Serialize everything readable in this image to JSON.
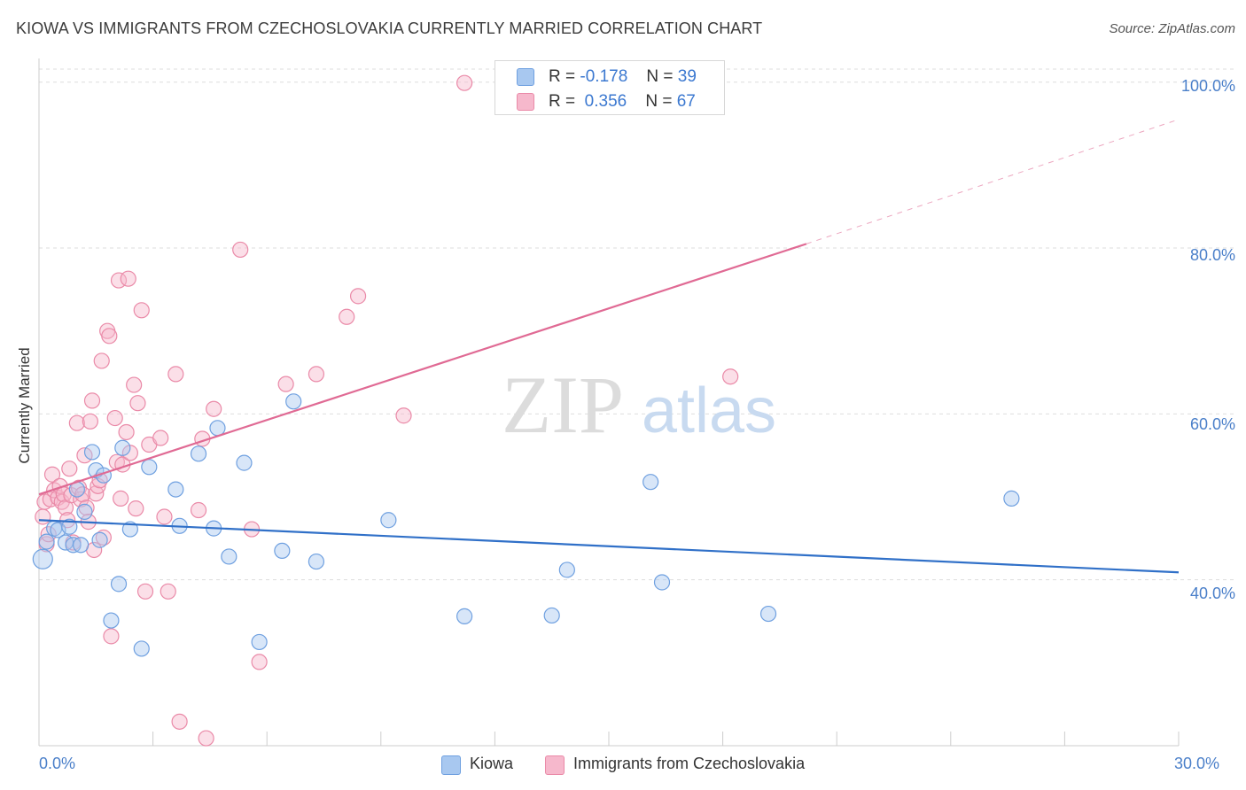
{
  "title": "KIOWA VS IMMIGRANTS FROM CZECHOSLOVAKIA CURRENTLY MARRIED CORRELATION CHART",
  "source": "Source: ZipAtlas.com",
  "watermark": {
    "zip": "ZIP",
    "atlas": "atlas"
  },
  "legend_box": {
    "rows": [
      {
        "r_label": "R =",
        "r_value": "-0.178",
        "n_label": "N =",
        "n_value": "39"
      },
      {
        "r_label": "R =",
        "r_value": "0.356",
        "n_label": "N =",
        "n_value": "67"
      }
    ]
  },
  "bottom_legend": {
    "kiowa": "Kiowa",
    "czech": "Immigrants from Czechoslovakia"
  },
  "colors": {
    "kiowa_fill": "#a8c8f0",
    "kiowa_stroke": "#6fa0e0",
    "kiowa_line": "#3070c8",
    "czech_fill": "#f6b8cc",
    "czech_stroke": "#ea8aa8",
    "czech_line": "#e06a94",
    "tick_text": "#4a7fc9",
    "grid": "#dddddd"
  },
  "chart_data": {
    "type": "scatter",
    "title": "KIOWA VS IMMIGRANTS FROM CZECHOSLOVAKIA CURRENTLY MARRIED CORRELATION CHART",
    "xlabel": "",
    "ylabel": "Currently Married",
    "xlim": [
      0,
      30
    ],
    "ylim": [
      20,
      102
    ],
    "x_tick_labels": [
      "0.0%",
      "30.0%"
    ],
    "y_ticks": [
      40,
      60,
      80,
      100
    ],
    "y_tick_labels": [
      "40.0%",
      "60.0%",
      "80.0%",
      "100.0%"
    ],
    "grid": true,
    "legend_placement": "top-center",
    "series": [
      {
        "name": "Kiowa",
        "r": -0.178,
        "n": 39,
        "trend": {
          "x": [
            0,
            30
          ],
          "y": [
            47.2,
            40.9
          ]
        },
        "points": [
          [
            0.1,
            42.5
          ],
          [
            0.2,
            44.6
          ],
          [
            0.4,
            46.2
          ],
          [
            0.5,
            46.0
          ],
          [
            0.7,
            44.5
          ],
          [
            0.8,
            46.4
          ],
          [
            0.9,
            44.2
          ],
          [
            1.0,
            50.9
          ],
          [
            1.1,
            44.2
          ],
          [
            1.2,
            48.2
          ],
          [
            1.4,
            55.4
          ],
          [
            1.5,
            53.2
          ],
          [
            1.6,
            44.8
          ],
          [
            1.7,
            52.6
          ],
          [
            1.9,
            35.1
          ],
          [
            2.1,
            39.5
          ],
          [
            2.2,
            55.9
          ],
          [
            2.4,
            46.1
          ],
          [
            2.7,
            31.7
          ],
          [
            2.9,
            53.6
          ],
          [
            3.6,
            50.9
          ],
          [
            3.7,
            46.5
          ],
          [
            4.2,
            55.2
          ],
          [
            4.6,
            46.2
          ],
          [
            4.7,
            58.3
          ],
          [
            5.0,
            42.8
          ],
          [
            5.4,
            54.1
          ],
          [
            5.8,
            32.5
          ],
          [
            6.4,
            43.5
          ],
          [
            6.7,
            61.5
          ],
          [
            7.3,
            42.2
          ],
          [
            9.2,
            47.2
          ],
          [
            11.2,
            35.6
          ],
          [
            13.5,
            35.7
          ],
          [
            13.9,
            41.2
          ],
          [
            16.1,
            51.8
          ],
          [
            16.4,
            39.7
          ],
          [
            19.2,
            35.9
          ],
          [
            25.6,
            49.8
          ]
        ]
      },
      {
        "name": "Immigrants from Czechoslovakia",
        "r": 0.356,
        "n": 67,
        "trend": {
          "x": [
            0,
            20.2
          ],
          "y": [
            50.3,
            80.5
          ]
        },
        "trend_ext": {
          "x": [
            20.2,
            30
          ],
          "y": [
            80.5,
            95.5
          ]
        },
        "points": [
          [
            0.1,
            47.6
          ],
          [
            0.15,
            49.4
          ],
          [
            0.2,
            44.3
          ],
          [
            0.3,
            49.7
          ],
          [
            0.35,
            52.7
          ],
          [
            0.4,
            50.8
          ],
          [
            0.5,
            49.9
          ],
          [
            0.55,
            51.3
          ],
          [
            0.6,
            49.4
          ],
          [
            0.65,
            50.3
          ],
          [
            0.7,
            48.7
          ],
          [
            0.75,
            47.2
          ],
          [
            0.8,
            53.4
          ],
          [
            0.85,
            50.2
          ],
          [
            0.9,
            44.5
          ],
          [
            1.0,
            58.9
          ],
          [
            1.05,
            51.1
          ],
          [
            1.1,
            49.7
          ],
          [
            1.15,
            50.3
          ],
          [
            1.2,
            55.0
          ],
          [
            1.25,
            48.7
          ],
          [
            1.3,
            47.0
          ],
          [
            1.35,
            59.1
          ],
          [
            1.4,
            61.6
          ],
          [
            1.45,
            43.6
          ],
          [
            1.5,
            50.4
          ],
          [
            1.55,
            51.3
          ],
          [
            1.6,
            52.0
          ],
          [
            1.65,
            66.4
          ],
          [
            1.7,
            45.1
          ],
          [
            1.8,
            70.0
          ],
          [
            1.85,
            69.4
          ],
          [
            1.9,
            33.2
          ],
          [
            2.0,
            59.5
          ],
          [
            2.05,
            54.2
          ],
          [
            2.1,
            76.1
          ],
          [
            2.15,
            49.8
          ],
          [
            2.2,
            53.9
          ],
          [
            2.3,
            57.8
          ],
          [
            2.35,
            76.3
          ],
          [
            2.4,
            55.3
          ],
          [
            2.5,
            63.5
          ],
          [
            2.55,
            48.6
          ],
          [
            2.6,
            61.3
          ],
          [
            2.7,
            72.5
          ],
          [
            2.8,
            38.6
          ],
          [
            2.9,
            56.3
          ],
          [
            3.2,
            57.1
          ],
          [
            3.3,
            47.6
          ],
          [
            3.4,
            38.6
          ],
          [
            3.6,
            64.8
          ],
          [
            3.7,
            22.9
          ],
          [
            4.2,
            48.4
          ],
          [
            4.3,
            57.0
          ],
          [
            4.4,
            20.9
          ],
          [
            4.6,
            60.6
          ],
          [
            5.3,
            79.8
          ],
          [
            5.6,
            46.1
          ],
          [
            5.8,
            30.1
          ],
          [
            6.5,
            63.6
          ],
          [
            7.3,
            64.8
          ],
          [
            8.1,
            71.7
          ],
          [
            8.4,
            74.2
          ],
          [
            9.6,
            59.8
          ],
          [
            11.2,
            99.9
          ],
          [
            18.2,
            64.5
          ],
          [
            0.25,
            45.5
          ]
        ]
      }
    ]
  }
}
